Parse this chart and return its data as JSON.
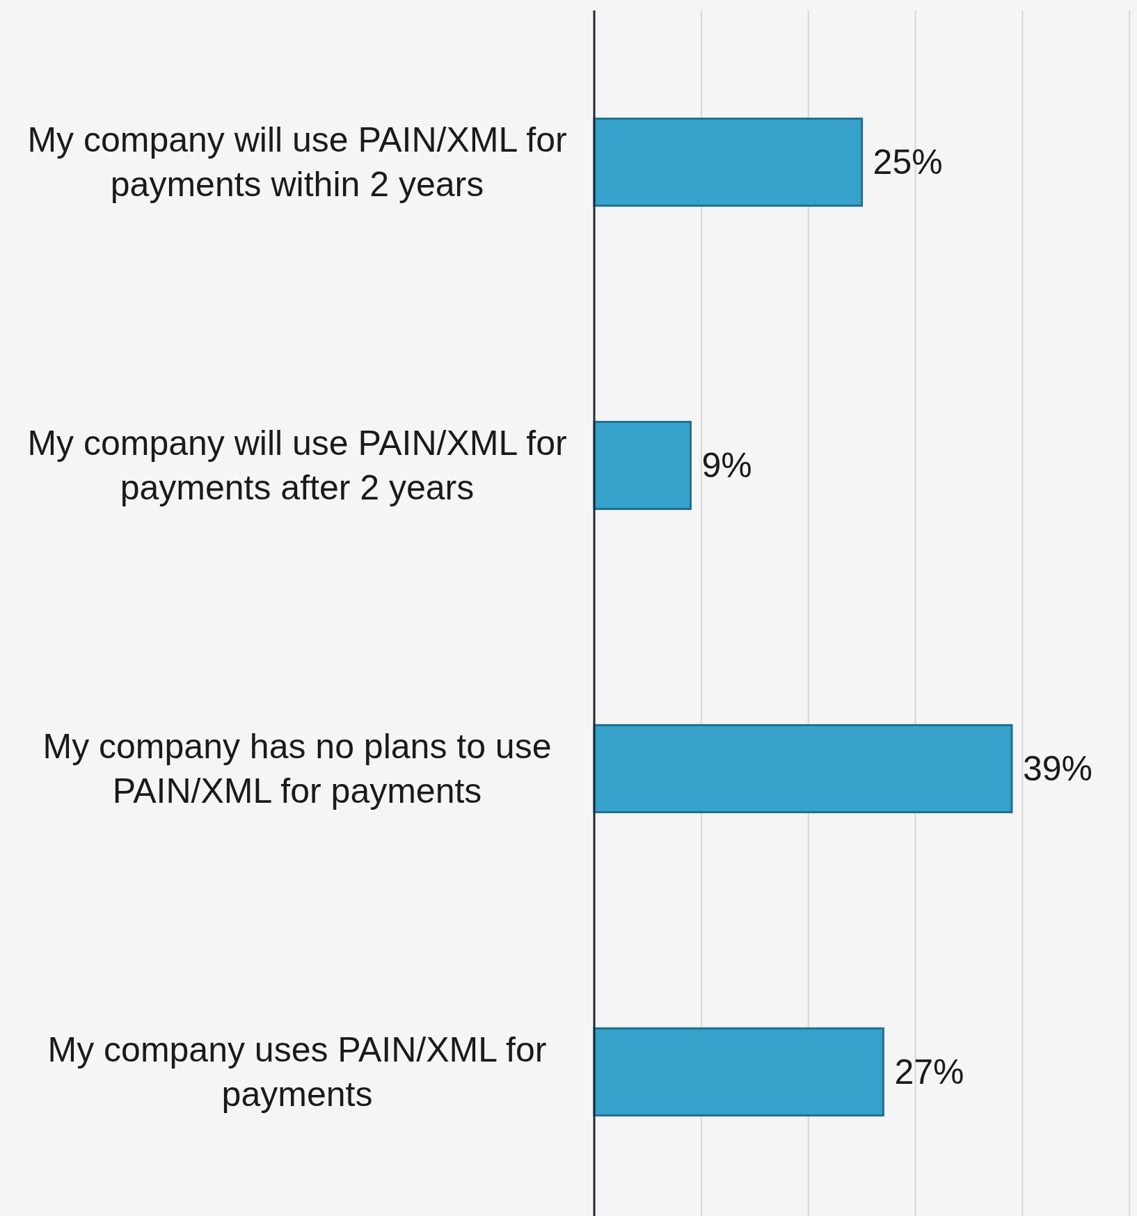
{
  "chart_data": {
    "type": "bar",
    "orientation": "horizontal",
    "categories": [
      "My company will use PAIN/XML for payments within 2 years",
      "My company will use PAIN/XML for payments after 2 years",
      "My company has no plans to use PAIN/XML for payments",
      "My company uses PAIN/XML for payments"
    ],
    "values": [
      25,
      9,
      39,
      27
    ],
    "color": "#36a2cb",
    "value_labels": [
      "25%",
      "9%",
      "39%",
      "27%"
    ],
    "xlim": [
      0,
      50.7
    ],
    "xticks": [
      {
        "value": 0,
        "label": null
      },
      {
        "value": 10,
        "label": null
      },
      {
        "value": 20,
        "label": null
      },
      {
        "value": 30,
        "label": null
      },
      {
        "value": 40,
        "label": null
      },
      {
        "value": 50,
        "label": null
      }
    ],
    "grid": "x"
  }
}
